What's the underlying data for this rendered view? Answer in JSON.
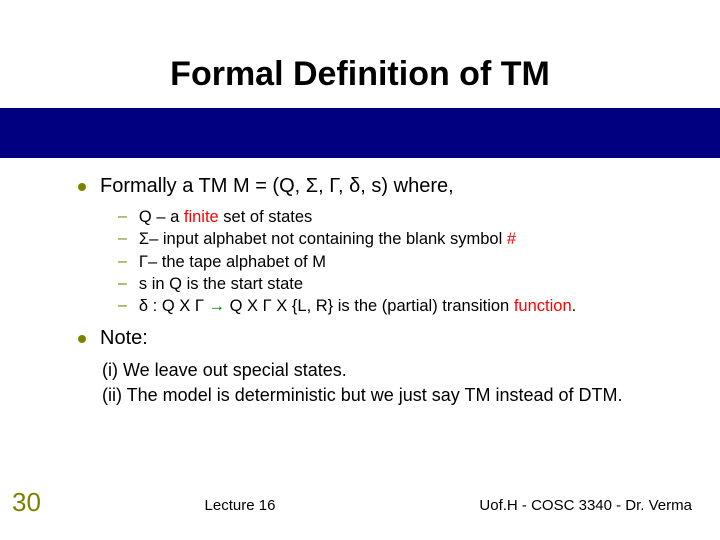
{
  "colors": {
    "accent": "#808000",
    "banner": "#000080",
    "emph1": "#ff0000",
    "emph2": "#008000",
    "text": "#000000"
  },
  "title": "Formal Definition of TM",
  "bullet1": "Formally a TM M = (Q, Σ, Γ, δ, s) where,",
  "sub": {
    "a": {
      "pre": "Q – a ",
      "red": "finite",
      "post": " set of states"
    },
    "b": {
      "pre": "Σ– input alphabet not containing the blank symbol ",
      "hash": "#"
    },
    "c": "Γ– the tape alphabet of M",
    "d": "s in Q is the start state",
    "e": {
      "pre": "δ : Q X Γ ",
      "arrow": "→",
      "mid": " Q X Γ X {L, R} is the (partial) transition ",
      "red": "function",
      "post": "."
    }
  },
  "bullet2": "Note:",
  "note1": "(i) We leave out special states.",
  "note2": "(ii) The model is deterministic  but we just say TM instead of DTM.",
  "slideNum": "30",
  "footerCenter": "Lecture 16",
  "footerRight": "Uof.H - COSC 3340 - Dr. Verma"
}
